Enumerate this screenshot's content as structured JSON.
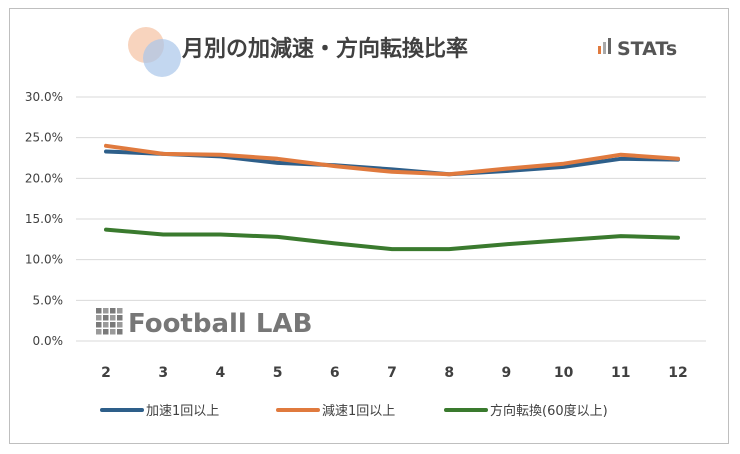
{
  "header": {
    "title": "月別の加減速・方向転換比率",
    "brand": "STATs"
  },
  "watermark": {
    "text": "Football LAB"
  },
  "chart_data": {
    "type": "line",
    "title": "月別の加減速・方向転換比率",
    "categories": [
      "2",
      "3",
      "4",
      "5",
      "6",
      "7",
      "8",
      "9",
      "10",
      "11",
      "12"
    ],
    "yticks": [
      "0.0%",
      "5.0%",
      "10.0%",
      "15.0%",
      "20.0%",
      "25.0%",
      "30.0%"
    ],
    "ylim": [
      0,
      30
    ],
    "grid": true,
    "legend_position": "bottom",
    "series": [
      {
        "name": "加速1回以上",
        "color": "#2e5f8a",
        "values": [
          23.3,
          23.0,
          22.7,
          21.9,
          21.6,
          21.1,
          20.5,
          20.9,
          21.4,
          22.4,
          22.3
        ]
      },
      {
        "name": "減速1回以上",
        "color": "#e07a3e",
        "values": [
          24.0,
          23.0,
          22.9,
          22.4,
          21.5,
          20.8,
          20.5,
          21.2,
          21.8,
          22.9,
          22.4
        ]
      },
      {
        "name": "方向転換(60度以上)",
        "color": "#3a7a2e",
        "values": [
          13.7,
          13.1,
          13.1,
          12.8,
          12.0,
          11.3,
          11.3,
          11.9,
          12.4,
          12.9,
          12.7
        ]
      }
    ]
  }
}
